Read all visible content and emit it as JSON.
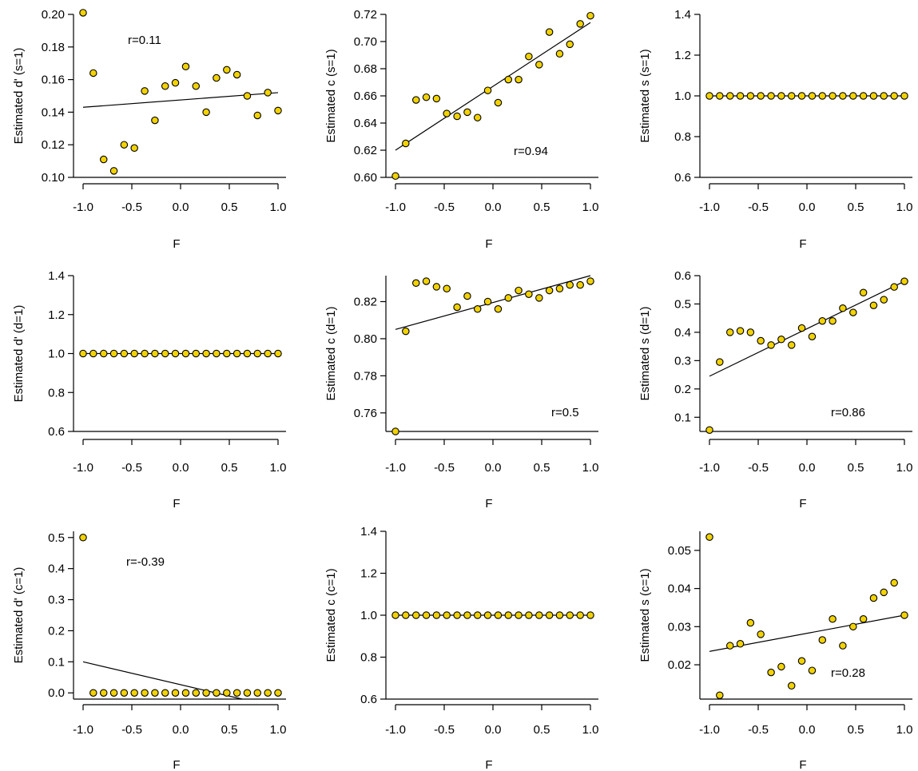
{
  "style": {
    "point_fill": "#f2d200",
    "point_stroke": "#000000",
    "line_color": "#000000"
  },
  "chart_data": [
    {
      "type": "scatter",
      "xlabel": "F",
      "ylabel": "Estimated d' (s=1)",
      "xticks": [
        "-1.0",
        "-0.5",
        "0.0",
        "0.5",
        "1.0"
      ],
      "yticks": [
        "0.10",
        "0.12",
        "0.14",
        "0.16",
        "0.18",
        "0.20"
      ],
      "xlim": [
        -1.0,
        1.0
      ],
      "ylim": [
        0.1,
        0.2
      ],
      "annotation": "r=0.11",
      "points": {
        "x": [
          -1.0,
          -0.895,
          -0.789,
          -0.684,
          -0.579,
          -0.474,
          -0.368,
          -0.263,
          -0.158,
          -0.053,
          0.053,
          0.158,
          0.263,
          0.368,
          0.474,
          0.579,
          0.684,
          0.789,
          0.895,
          1.0
        ],
        "y": [
          0.201,
          0.164,
          0.111,
          0.104,
          0.12,
          0.118,
          0.153,
          0.135,
          0.156,
          0.158,
          0.168,
          0.156,
          0.14,
          0.161,
          0.166,
          0.163,
          0.15,
          0.138,
          0.152,
          0.141
        ]
      },
      "fit_line": {
        "x": [
          -1.0,
          1.0
        ],
        "y": [
          0.143,
          0.152
        ]
      }
    },
    {
      "type": "scatter",
      "xlabel": "F",
      "ylabel": "Estimated c (s=1)",
      "xticks": [
        "-1.0",
        "-0.5",
        "0.0",
        "0.5",
        "1.0"
      ],
      "yticks": [
        "0.60",
        "0.62",
        "0.64",
        "0.66",
        "0.68",
        "0.70",
        "0.72"
      ],
      "xlim": [
        -1.0,
        1.0
      ],
      "ylim": [
        0.6,
        0.72
      ],
      "annotation": "r=0.94",
      "points": {
        "x": [
          -1.0,
          -0.895,
          -0.789,
          -0.684,
          -0.579,
          -0.474,
          -0.368,
          -0.263,
          -0.158,
          -0.053,
          0.053,
          0.158,
          0.263,
          0.368,
          0.474,
          0.579,
          0.684,
          0.789,
          0.895,
          1.0
        ],
        "y": [
          0.601,
          0.625,
          0.657,
          0.659,
          0.658,
          0.647,
          0.645,
          0.648,
          0.644,
          0.664,
          0.655,
          0.672,
          0.672,
          0.689,
          0.683,
          0.707,
          0.691,
          0.698,
          0.713,
          0.719
        ]
      },
      "fit_line": {
        "x": [
          -1.0,
          1.0
        ],
        "y": [
          0.62,
          0.714
        ]
      }
    },
    {
      "type": "scatter",
      "xlabel": "F",
      "ylabel": "Estimated s (s=1)",
      "xticks": [
        "-1.0",
        "-0.5",
        "0.0",
        "0.5",
        "1.0"
      ],
      "yticks": [
        "0.6",
        "0.8",
        "1.0",
        "1.2",
        "1.4"
      ],
      "xlim": [
        -1.0,
        1.0
      ],
      "ylim": [
        0.6,
        1.4
      ],
      "annotation": "",
      "points": {
        "x": [
          -1.0,
          -0.895,
          -0.789,
          -0.684,
          -0.579,
          -0.474,
          -0.368,
          -0.263,
          -0.158,
          -0.053,
          0.053,
          0.158,
          0.263,
          0.368,
          0.474,
          0.579,
          0.684,
          0.789,
          0.895,
          1.0
        ],
        "y": [
          1.0,
          1.0,
          1.0,
          1.0,
          1.0,
          1.0,
          1.0,
          1.0,
          1.0,
          1.0,
          1.0,
          1.0,
          1.0,
          1.0,
          1.0,
          1.0,
          1.0,
          1.0,
          1.0,
          1.0
        ]
      },
      "fit_line": {
        "x": [
          -1.0,
          1.0
        ],
        "y": [
          1.0,
          1.0
        ]
      }
    },
    {
      "type": "scatter",
      "xlabel": "F",
      "ylabel": "Estimated d' (d=1)",
      "xticks": [
        "-1.0",
        "-0.5",
        "0.0",
        "0.5",
        "1.0"
      ],
      "yticks": [
        "0.6",
        "0.8",
        "1.0",
        "1.2",
        "1.4"
      ],
      "xlim": [
        -1.0,
        1.0
      ],
      "ylim": [
        0.6,
        1.4
      ],
      "annotation": "",
      "points": {
        "x": [
          -1.0,
          -0.895,
          -0.789,
          -0.684,
          -0.579,
          -0.474,
          -0.368,
          -0.263,
          -0.158,
          -0.053,
          0.053,
          0.158,
          0.263,
          0.368,
          0.474,
          0.579,
          0.684,
          0.789,
          0.895,
          1.0
        ],
        "y": [
          1.0,
          1.0,
          1.0,
          1.0,
          1.0,
          1.0,
          1.0,
          1.0,
          1.0,
          1.0,
          1.0,
          1.0,
          1.0,
          1.0,
          1.0,
          1.0,
          1.0,
          1.0,
          1.0,
          1.0
        ]
      },
      "fit_line": {
        "x": [
          -1.0,
          1.0
        ],
        "y": [
          1.0,
          1.0
        ]
      }
    },
    {
      "type": "scatter",
      "xlabel": "F",
      "ylabel": "Estimated c (d=1)",
      "xticks": [
        "-1.0",
        "-0.5",
        "0.0",
        "0.5",
        "1.0"
      ],
      "yticks": [
        "0.76",
        "0.78",
        "0.80",
        "0.82"
      ],
      "xlim": [
        -1.0,
        1.0
      ],
      "ylim": [
        0.75,
        0.834
      ],
      "annotation": "r=0.5",
      "points": {
        "x": [
          -1.0,
          -0.895,
          -0.789,
          -0.684,
          -0.579,
          -0.474,
          -0.368,
          -0.263,
          -0.158,
          -0.053,
          0.053,
          0.158,
          0.263,
          0.368,
          0.474,
          0.579,
          0.684,
          0.789,
          0.895,
          1.0
        ],
        "y": [
          0.75,
          0.804,
          0.83,
          0.831,
          0.828,
          0.827,
          0.817,
          0.823,
          0.816,
          0.82,
          0.816,
          0.822,
          0.826,
          0.824,
          0.822,
          0.826,
          0.827,
          0.829,
          0.829,
          0.831
        ]
      },
      "fit_line": {
        "x": [
          -1.0,
          1.0
        ],
        "y": [
          0.805,
          0.834
        ]
      }
    },
    {
      "type": "scatter",
      "xlabel": "F",
      "ylabel": "Estimated s (d=1)",
      "xticks": [
        "-1.0",
        "-0.5",
        "0.0",
        "0.5",
        "1.0"
      ],
      "yticks": [
        "0.1",
        "0.2",
        "0.3",
        "0.4",
        "0.5",
        "0.6"
      ],
      "xlim": [
        -1.0,
        1.0
      ],
      "ylim": [
        0.05,
        0.6
      ],
      "annotation": "r=0.86",
      "points": {
        "x": [
          -1.0,
          -0.895,
          -0.789,
          -0.684,
          -0.579,
          -0.474,
          -0.368,
          -0.263,
          -0.158,
          -0.053,
          0.053,
          0.158,
          0.263,
          0.368,
          0.474,
          0.579,
          0.684,
          0.789,
          0.895,
          1.0
        ],
        "y": [
          0.055,
          0.295,
          0.4,
          0.405,
          0.4,
          0.37,
          0.355,
          0.375,
          0.355,
          0.415,
          0.385,
          0.44,
          0.44,
          0.485,
          0.47,
          0.54,
          0.495,
          0.515,
          0.56,
          0.58
        ]
      },
      "fit_line": {
        "x": [
          -1.0,
          1.0
        ],
        "y": [
          0.245,
          0.58
        ]
      }
    },
    {
      "type": "scatter",
      "xlabel": "F",
      "ylabel": "Estimated d' (c=1)",
      "xticks": [
        "-1.0",
        "-0.5",
        "0.0",
        "0.5",
        "1.0"
      ],
      "yticks": [
        "0.0",
        "0.1",
        "0.2",
        "0.3",
        "0.4",
        "0.5"
      ],
      "xlim": [
        -1.0,
        1.0
      ],
      "ylim": [
        -0.02,
        0.52
      ],
      "annotation": "r=-0.39",
      "points": {
        "x": [
          -1.0,
          -0.895,
          -0.789,
          -0.684,
          -0.579,
          -0.474,
          -0.368,
          -0.263,
          -0.158,
          -0.053,
          0.053,
          0.158,
          0.263,
          0.368,
          0.474,
          0.579,
          0.684,
          0.789,
          0.895,
          1.0
        ],
        "y": [
          0.5,
          0.0,
          0.0,
          0.0,
          0.0,
          0.0,
          0.0,
          0.0,
          0.0,
          0.0,
          0.0,
          0.0,
          0.0,
          0.0,
          0.0,
          0.0,
          0.0,
          0.0,
          0.0,
          0.0
        ]
      },
      "fit_line": {
        "x": [
          -1.0,
          0.632
        ],
        "y": [
          0.1,
          -0.02
        ]
      }
    },
    {
      "type": "scatter",
      "xlabel": "F",
      "ylabel": "Estimated c (c=1)",
      "xticks": [
        "-1.0",
        "-0.5",
        "0.0",
        "0.5",
        "1.0"
      ],
      "yticks": [
        "0.6",
        "0.8",
        "1.0",
        "1.2",
        "1.4"
      ],
      "xlim": [
        -1.0,
        1.0
      ],
      "ylim": [
        0.6,
        1.4
      ],
      "annotation": "",
      "points": {
        "x": [
          -1.0,
          -0.895,
          -0.789,
          -0.684,
          -0.579,
          -0.474,
          -0.368,
          -0.263,
          -0.158,
          -0.053,
          0.053,
          0.158,
          0.263,
          0.368,
          0.474,
          0.579,
          0.684,
          0.789,
          0.895,
          1.0
        ],
        "y": [
          1.0,
          1.0,
          1.0,
          1.0,
          1.0,
          1.0,
          1.0,
          1.0,
          1.0,
          1.0,
          1.0,
          1.0,
          1.0,
          1.0,
          1.0,
          1.0,
          1.0,
          1.0,
          1.0,
          1.0
        ]
      },
      "fit_line": {
        "x": [
          -1.0,
          1.0
        ],
        "y": [
          1.0,
          1.0
        ]
      }
    },
    {
      "type": "scatter",
      "xlabel": "F",
      "ylabel": "Estimated s (c=1)",
      "xticks": [
        "-1.0",
        "-0.5",
        "0.0",
        "0.5",
        "1.0"
      ],
      "yticks": [
        "0.02",
        "0.03",
        "0.04",
        "0.05"
      ],
      "xlim": [
        -1.0,
        1.0
      ],
      "ylim": [
        0.011,
        0.055
      ],
      "annotation": "r=0.28",
      "points": {
        "x": [
          -1.0,
          -0.895,
          -0.789,
          -0.684,
          -0.579,
          -0.474,
          -0.368,
          -0.263,
          -0.158,
          -0.053,
          0.053,
          0.158,
          0.263,
          0.368,
          0.474,
          0.579,
          0.684,
          0.789,
          0.895,
          1.0
        ],
        "y": [
          0.0535,
          0.012,
          0.025,
          0.0255,
          0.031,
          0.028,
          0.018,
          0.0195,
          0.0145,
          0.021,
          0.0185,
          0.0265,
          0.032,
          0.025,
          0.03,
          0.032,
          0.0375,
          0.039,
          0.0415,
          0.033
        ]
      },
      "fit_line": {
        "x": [
          -1.0,
          1.0
        ],
        "y": [
          0.0235,
          0.033
        ]
      }
    }
  ]
}
